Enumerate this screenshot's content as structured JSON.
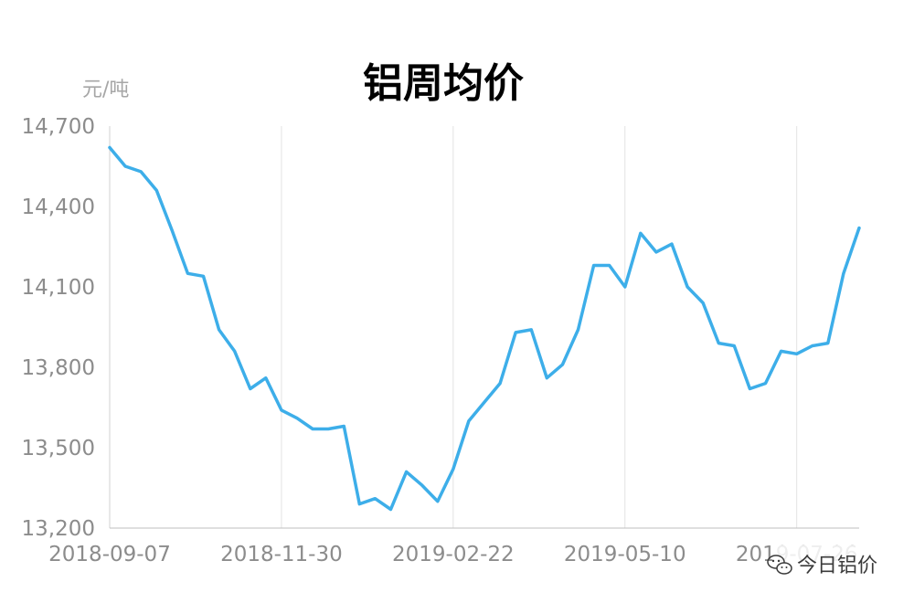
{
  "chart_data": {
    "type": "line",
    "title": "铝周均价",
    "unit_label": "元/吨",
    "xlabel": "",
    "ylabel": "",
    "ylim": [
      13200,
      14700
    ],
    "y_ticks": [
      "13,200",
      "13,500",
      "13,800",
      "14,100",
      "14,400",
      "14,700"
    ],
    "y_tick_values": [
      13200,
      13500,
      13800,
      14100,
      14400,
      14700
    ],
    "x_tick_labels": [
      "2018-09-07",
      "2018-11-30",
      "2019-02-22",
      "2019-05-10",
      "2019-07-26"
    ],
    "x_tick_indices": [
      0,
      11,
      22,
      33,
      44
    ],
    "grid": "vertical",
    "line_color": "#3daee9",
    "series": [
      {
        "values": [
          14620,
          14550,
          14530,
          14460,
          14310,
          14150,
          14140,
          13940,
          13860,
          13720,
          13760,
          13640,
          13610,
          13570,
          13570,
          13580,
          13290,
          13310,
          13270,
          13410,
          13360,
          13300,
          13420,
          13600,
          13670,
          13740,
          13930,
          13940,
          13760,
          13810,
          13940,
          14180,
          14180,
          14100,
          14300,
          14230,
          14260,
          14100,
          14040,
          13890,
          13880,
          13720,
          13740,
          13860,
          13850,
          13880,
          13890,
          14150,
          14320
        ]
      }
    ]
  },
  "watermark": {
    "text": "今日铝价",
    "icon": "wechat-icon"
  }
}
